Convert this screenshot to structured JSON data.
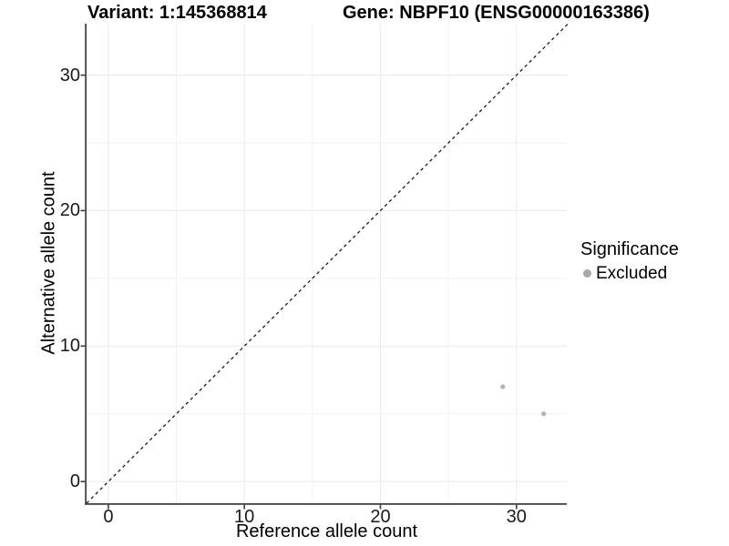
{
  "chart_data": {
    "type": "scatter",
    "title_left": "Variant: 1:145368814",
    "title_right": "Gene: NBPF10 (ENSG00000163386)",
    "xlabel": "Reference allele count",
    "ylabel": "Alternative allele count",
    "xlim": [
      -1.6,
      33.7
    ],
    "ylim": [
      -1.6,
      33.8
    ],
    "x_major_ticks": [
      0,
      10,
      20,
      30
    ],
    "y_major_ticks": [
      0,
      10,
      20,
      30
    ],
    "x_gridlines": [
      0,
      5,
      10,
      15,
      20,
      25,
      30
    ],
    "y_gridlines": [
      0,
      5,
      10,
      15,
      20,
      25,
      30
    ],
    "grid": "on",
    "identity_line": {
      "equation": "y = x",
      "style": "dashed"
    },
    "series": [
      {
        "name": "Excluded",
        "color": "#b3b3b3",
        "points": [
          {
            "x": 29,
            "y": 7
          },
          {
            "x": 32,
            "y": 5
          }
        ]
      }
    ],
    "legend": {
      "title": "Significance",
      "position": "right",
      "entries": [
        {
          "label": "Excluded",
          "color": "#a9a9a9"
        }
      ]
    }
  },
  "colors": {
    "background": "#ffffff",
    "grid_major": "#eaeaea",
    "grid_minor": "#f1f1f1",
    "axis_line": "#3d3d3d",
    "tick_text": "#1a1a1a",
    "identity_line": "#1a1a1a",
    "point_fill": "#b3b3b3"
  }
}
